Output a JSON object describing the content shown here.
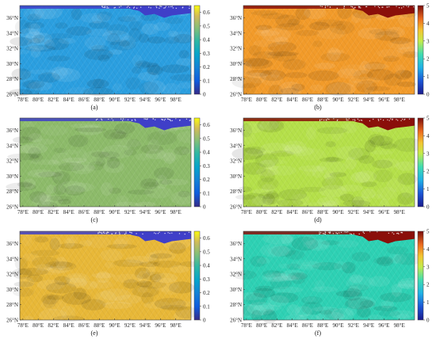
{
  "axes": {
    "lat_labels": [
      "26°N",
      "28°N",
      "30°N",
      "32°N",
      "34°N",
      "36°N"
    ],
    "lat_values": [
      26,
      28,
      30,
      32,
      34,
      36
    ],
    "lon_labels": [
      "78°E",
      "80°E",
      "82°E",
      "84°E",
      "86°E",
      "88°E",
      "90°E",
      "92°E",
      "94°E",
      "96°E",
      "98°E"
    ],
    "lon_values": [
      78,
      80,
      82,
      84,
      86,
      88,
      90,
      92,
      94,
      96,
      98
    ],
    "lat_range": [
      26,
      37.6
    ],
    "lon_range": [
      77.6,
      100
    ]
  },
  "colorbars": {
    "left": {
      "ticks": [
        "0",
        "0.1",
        "0.2",
        "0.3",
        "0.4",
        "0.5",
        "0.6"
      ],
      "range": [
        0,
        0.65
      ],
      "colormap": "parula"
    },
    "right": {
      "ticks": [
        "0",
        "1",
        "2",
        "3",
        "4",
        "5"
      ],
      "range": [
        0,
        5
      ],
      "colormap": "jet"
    }
  },
  "panels": [
    {
      "caption": "(a)",
      "colorbar": "left",
      "field_value": 0.32,
      "plateau_value": 0.08,
      "base_color": "#2b9fe0",
      "plateau_color": "#3f3fc8"
    },
    {
      "caption": "(b)",
      "colorbar": "right",
      "field_value": 3.9,
      "plateau_value": 5.0,
      "base_color": "#f29b2a",
      "plateau_color": "#8a0f0a"
    },
    {
      "caption": "(c)",
      "colorbar": "left",
      "field_value": 0.45,
      "plateau_value": 0.1,
      "base_color": "#8dbb6a",
      "plateau_color": "#3f3fc8"
    },
    {
      "caption": "(d)",
      "colorbar": "right",
      "field_value": 2.8,
      "plateau_value": 5.0,
      "base_color": "#b5e04a",
      "plateau_color": "#8a0f0a"
    },
    {
      "caption": "(e)",
      "colorbar": "left",
      "field_value": 0.55,
      "plateau_value": 0.12,
      "base_color": "#e8b838",
      "plateau_color": "#3f3fc8"
    },
    {
      "caption": "(f)",
      "colorbar": "right",
      "field_value": 1.8,
      "plateau_value": 5.0,
      "base_color": "#2ed1b4",
      "plateau_color": "#8a0f0a"
    }
  ]
}
